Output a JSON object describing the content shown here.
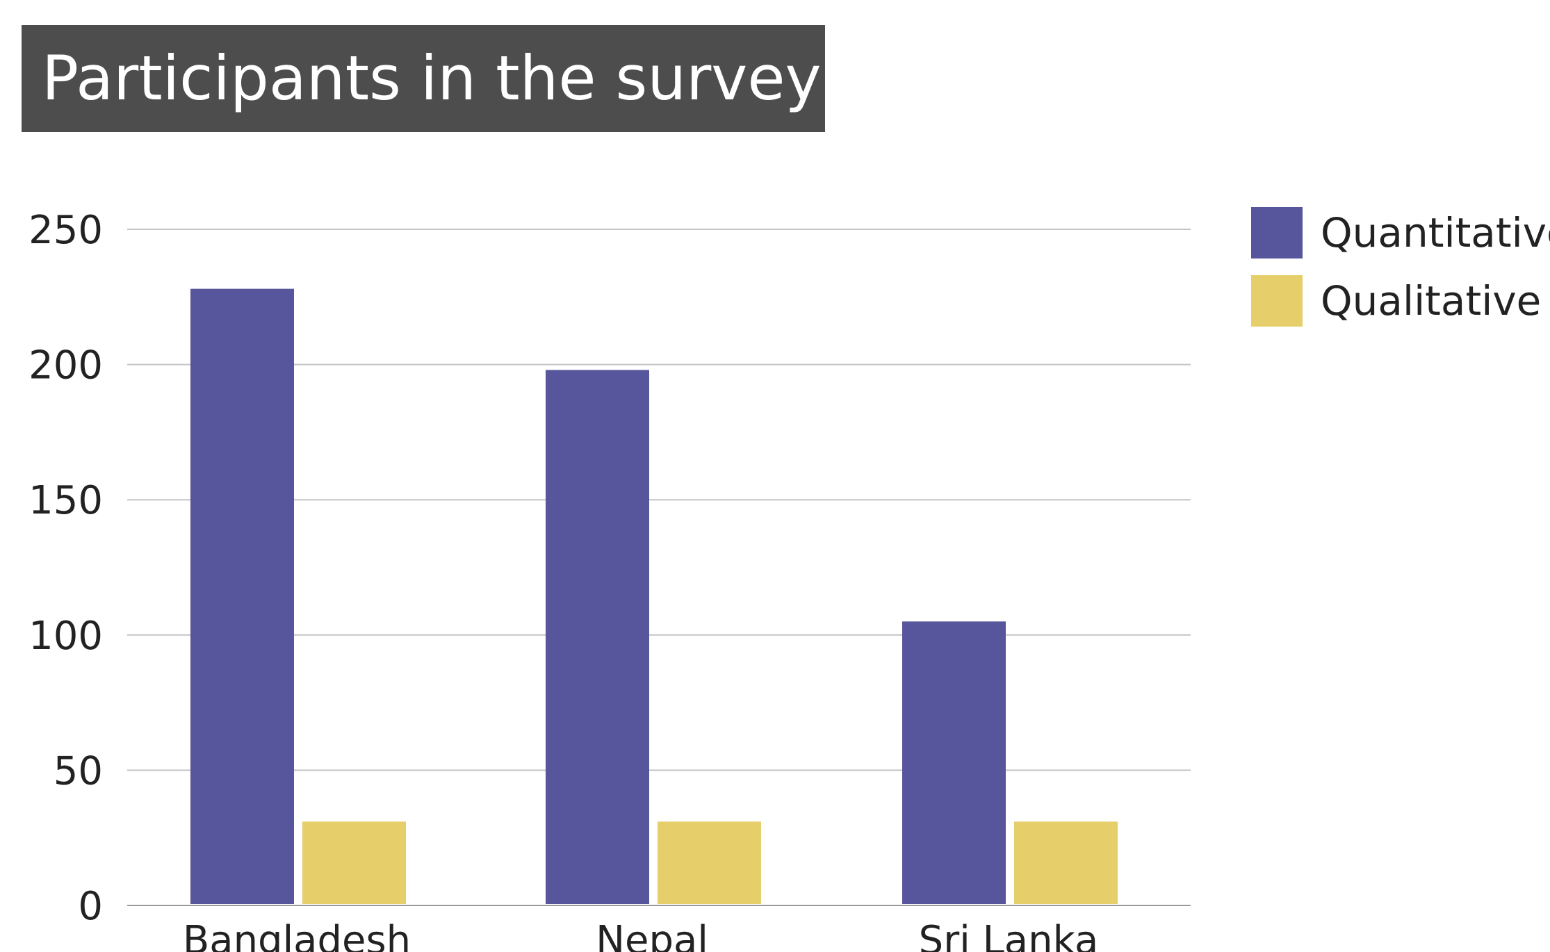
{
  "chart_data": {
    "type": "bar",
    "title": "Participants in the survey",
    "categories": [
      "Bangladesh",
      "Nepal",
      "Sri Lanka"
    ],
    "series": [
      {
        "name": "Quantitative",
        "color": "#57559b",
        "values": [
          228,
          198,
          105
        ]
      },
      {
        "name": "Qualitative",
        "color": "#e6ce6a",
        "values": [
          31,
          31,
          31
        ]
      }
    ],
    "xlabel": "",
    "ylabel": "",
    "ylim": [
      0,
      250
    ],
    "yticks": [
      0,
      50,
      100,
      150,
      200,
      250
    ],
    "grid": true,
    "legend_position": "top-right"
  }
}
